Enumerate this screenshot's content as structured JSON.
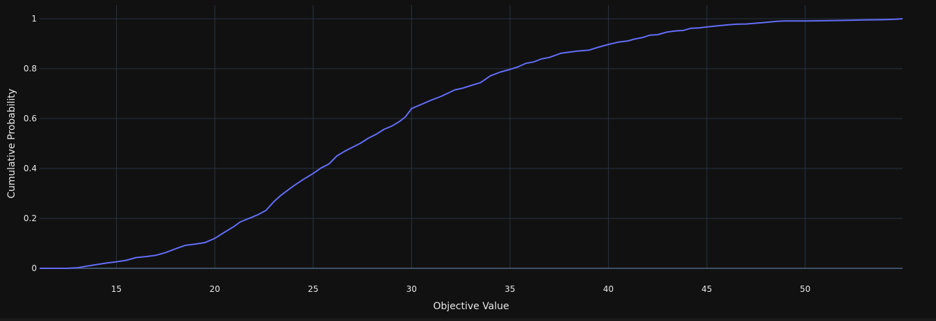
{
  "chart_data": {
    "type": "line",
    "title": "",
    "xlabel": "Objective Value",
    "ylabel": "Cumulative Probability",
    "xlim": [
      11.1,
      54.95
    ],
    "ylim": [
      0,
      1
    ],
    "x_ticks": [
      15,
      20,
      25,
      30,
      35,
      40,
      45,
      50
    ],
    "y_ticks": [
      0,
      0.2,
      0.4,
      0.6,
      0.8,
      1
    ],
    "y_tick_labels": [
      "0",
      "0.2",
      "0.4",
      "0.6",
      "0.8",
      "1"
    ],
    "grid": true,
    "legend": "none",
    "colors": {
      "background": "#111111",
      "grid": "#283442",
      "line": "#636efa",
      "text": "#e8e8e8"
    },
    "series": [
      {
        "name": "",
        "x": [
          11.1,
          12.5,
          13.0,
          13.5,
          14.0,
          14.5,
          15.0,
          15.5,
          16.0,
          16.5,
          17.0,
          17.5,
          18.0,
          18.5,
          19.0,
          19.5,
          20.0,
          20.4,
          21.0,
          21.3,
          21.8,
          22.2,
          22.6,
          23.0,
          23.4,
          24.0,
          24.5,
          25.0,
          25.4,
          25.8,
          26.2,
          26.6,
          27.0,
          27.4,
          27.8,
          28.2,
          28.6,
          29.0,
          29.4,
          29.7,
          30.0,
          30.5,
          31.0,
          31.5,
          31.8,
          32.2,
          32.6,
          33.0,
          33.5,
          34.0,
          34.5,
          35.0,
          35.4,
          35.8,
          36.2,
          36.6,
          37.0,
          37.6,
          38.0,
          38.4,
          39.0,
          39.5,
          40.0,
          40.5,
          41.0,
          41.3,
          41.7,
          42.1,
          42.5,
          43.0,
          43.4,
          43.8,
          44.2,
          44.6,
          45.0,
          45.5,
          46.0,
          46.5,
          47.0,
          47.8,
          48.2,
          48.6,
          49.0,
          50.0,
          51.0,
          51.8,
          52.2,
          53.0,
          54.0,
          54.6,
          54.95
        ],
        "y": [
          0.0,
          0.0,
          0.002,
          0.009,
          0.015,
          0.021,
          0.026,
          0.032,
          0.043,
          0.047,
          0.052,
          0.063,
          0.078,
          0.092,
          0.097,
          0.103,
          0.12,
          0.14,
          0.169,
          0.186,
          0.202,
          0.215,
          0.232,
          0.267,
          0.295,
          0.33,
          0.356,
          0.38,
          0.402,
          0.418,
          0.45,
          0.469,
          0.485,
          0.501,
          0.521,
          0.537,
          0.557,
          0.57,
          0.589,
          0.608,
          0.64,
          0.657,
          0.674,
          0.689,
          0.7,
          0.715,
          0.722,
          0.732,
          0.744,
          0.771,
          0.786,
          0.797,
          0.807,
          0.821,
          0.827,
          0.839,
          0.845,
          0.862,
          0.866,
          0.87,
          0.874,
          0.886,
          0.897,
          0.906,
          0.911,
          0.918,
          0.924,
          0.934,
          0.936,
          0.947,
          0.951,
          0.953,
          0.962,
          0.963,
          0.967,
          0.971,
          0.975,
          0.978,
          0.979,
          0.984,
          0.987,
          0.99,
          0.991,
          0.991,
          0.992,
          0.993,
          0.994,
          0.995,
          0.996,
          0.998,
          1.0
        ]
      }
    ]
  }
}
